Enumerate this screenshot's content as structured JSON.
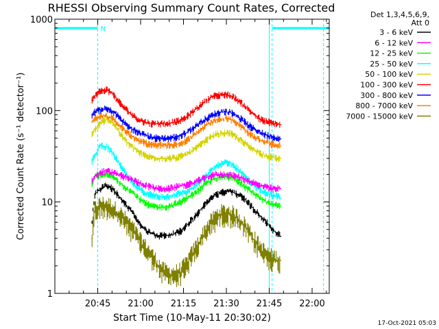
{
  "chart_data": {
    "type": "line",
    "title": "RHESSI Observing Summary Count Rates, Corrected",
    "xlabel": "Start Time (10-May-11 20:30:02)",
    "ylabel": "Corrected Count Rate (s⁻¹ detector⁻¹)",
    "yscale": "log",
    "ylim": [
      1,
      1000
    ],
    "xlim_minutes": [
      0,
      96
    ],
    "x_ticks": [
      {
        "t": 15,
        "label": "20:45"
      },
      {
        "t": 30,
        "label": "21:00"
      },
      {
        "t": 45,
        "label": "21:15"
      },
      {
        "t": 60,
        "label": "21:30"
      },
      {
        "t": 75,
        "label": "21:45"
      },
      {
        "t": 90,
        "label": "22:00"
      }
    ],
    "y_ticks": [
      {
        "v": 1,
        "label": "1"
      },
      {
        "v": 10,
        "label": "10"
      },
      {
        "v": 100,
        "label": "100"
      },
      {
        "v": 1000,
        "label": "1000"
      }
    ],
    "legend_header": [
      "Det 1,3,4,5,6,9,",
      "Att 0"
    ],
    "legend_position": "right",
    "x_minutes": [
      13,
      14,
      16,
      18,
      20,
      22,
      24,
      26,
      28,
      30,
      32,
      34,
      36,
      38,
      40,
      42,
      44,
      46,
      48,
      50,
      52,
      54,
      56,
      58,
      60,
      62,
      64,
      66,
      68,
      70,
      72,
      74,
      76,
      78,
      79
    ],
    "series": [
      {
        "name": "3 - 6 keV",
        "color": "#000000",
        "values": [
          6,
          12,
          14,
          15,
          14,
          12,
          10,
          8.5,
          7,
          5.5,
          4.8,
          4.5,
          4.3,
          4.3,
          4.3,
          4.5,
          4.8,
          5.5,
          6.5,
          7.5,
          9,
          10.5,
          12,
          12.5,
          13,
          13,
          12,
          11,
          9.5,
          8,
          7,
          6,
          5,
          4.5,
          4.2
        ]
      },
      {
        "name": "6 - 12 keV",
        "color": "#ff00ff",
        "values": [
          17,
          19,
          21,
          22,
          21,
          20,
          19,
          18,
          17,
          16,
          15,
          14.5,
          14,
          14,
          14,
          14.5,
          15,
          15.5,
          16,
          17,
          18,
          19,
          20,
          20,
          20,
          19.5,
          19,
          18,
          17,
          16,
          15,
          14.5,
          14,
          14,
          14
        ]
      },
      {
        "name": "12 - 25 keV",
        "color": "#00ff00",
        "values": [
          15,
          19,
          20,
          20,
          19,
          17,
          15,
          13.5,
          12,
          10.5,
          9.5,
          9,
          8.8,
          8.8,
          9,
          9.5,
          10,
          11,
          12,
          13,
          15,
          16.5,
          18,
          19,
          19,
          18.5,
          17,
          15,
          13.5,
          12,
          11,
          10,
          9.5,
          9,
          9
        ]
      },
      {
        "name": "25 - 50 keV",
        "color": "#00ffff",
        "values": [
          28,
          32,
          42,
          40,
          35,
          28,
          22,
          18,
          15,
          13.5,
          12.5,
          12,
          11.5,
          11.5,
          11.5,
          12,
          12.5,
          13,
          14,
          16,
          18,
          21,
          24,
          26,
          27,
          26,
          23,
          20,
          17,
          15,
          13.5,
          12.5,
          12,
          11.5,
          11
        ]
      },
      {
        "name": "50 - 100 keV",
        "color": "#d4d400",
        "values": [
          55,
          62,
          72,
          80,
          75,
          62,
          50,
          42,
          38,
          34,
          32,
          30.5,
          30,
          30,
          30,
          30.5,
          31.5,
          33,
          36,
          40,
          45,
          50,
          54,
          56,
          57,
          55,
          50,
          45,
          40,
          37,
          34,
          32,
          31,
          30,
          30
        ]
      },
      {
        "name": "100 - 300 keV",
        "color": "#ff0000",
        "values": [
          130,
          145,
          165,
          170,
          155,
          130,
          110,
          95,
          85,
          78,
          74,
          72,
          72,
          72,
          73,
          75,
          78,
          85,
          95,
          108,
          122,
          135,
          145,
          150,
          150,
          143,
          130,
          115,
          100,
          88,
          80,
          76,
          73,
          71,
          70
        ]
      },
      {
        "name": "300 - 800 keV",
        "color": "#0000ff",
        "values": [
          90,
          97,
          102,
          104,
          98,
          88,
          75,
          66,
          60,
          56,
          53,
          51,
          50,
          50,
          50,
          51,
          53,
          57,
          63,
          70,
          78,
          85,
          92,
          96,
          97,
          94,
          86,
          77,
          68,
          62,
          57,
          54,
          52,
          50,
          49
        ]
      },
      {
        "name": "800 - 7000 keV",
        "color": "#ff8000",
        "values": [
          75,
          82,
          88,
          88,
          82,
          72,
          62,
          55,
          50,
          46,
          44,
          42.5,
          42,
          42,
          42,
          42.5,
          44,
          47,
          52,
          58,
          65,
          72,
          78,
          81,
          82,
          79,
          72,
          64,
          56,
          51,
          47,
          45,
          43,
          42,
          41
        ]
      },
      {
        "name": "7000 - 15000 keV",
        "color": "#808000",
        "values": [
          4,
          8,
          9,
          9,
          8.5,
          7.5,
          6.5,
          5.5,
          4.5,
          3.6,
          3.0,
          2.5,
          2.0,
          1.7,
          1.6,
          1.6,
          1.7,
          2.0,
          2.6,
          3.3,
          4.3,
          5.5,
          6.5,
          7.3,
          7.5,
          7.2,
          6.5,
          5.6,
          4.6,
          3.7,
          3.0,
          2.6,
          2.4,
          2.3,
          2.3
        ]
      }
    ],
    "attenuator_bar": {
      "color": "#00ffff",
      "label": "N",
      "intervals_minutes": [
        [
          0,
          15
        ],
        [
          76,
          96
        ]
      ]
    },
    "vertical_lines": [
      {
        "t": 15,
        "style": "dashed"
      },
      {
        "t": 76,
        "style": "dashed"
      },
      {
        "t": 94,
        "style": "dashed"
      },
      {
        "t": 0,
        "style": "solid"
      },
      {
        "t": 75,
        "style": "solid"
      }
    ],
    "grid": false
  },
  "footer": {
    "timestamp": "17-Oct-2021 05:03"
  }
}
